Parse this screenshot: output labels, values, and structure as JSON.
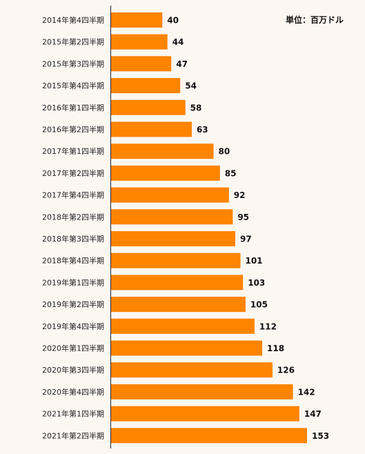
{
  "chart_data": {
    "type": "bar",
    "orientation": "horizontal",
    "unit_label": "単位：百万ドル",
    "bar_color": "#ff8400",
    "background": "#fdf7f2",
    "xlim": [
      0,
      153
    ],
    "grid": false,
    "categories": [
      "2014年第4四半期",
      "2015年第2四半期",
      "2015年第3四半期",
      "2015年第4四半期",
      "2016年第1四半期",
      "2016年第2四半期",
      "2017年第1四半期",
      "2017年第2四半期",
      "2017年第4四半期",
      "2018年第2四半期",
      "2018年第3四半期",
      "2018年第4四半期",
      "2019年第1四半期",
      "2019年第2四半期",
      "2019年第4四半期",
      "2020年第1四半期",
      "2020年第3四半期",
      "2020年第4四半期",
      "2021年第1四半期",
      "2021年第2四半期"
    ],
    "values": [
      40,
      44,
      47,
      54,
      58,
      63,
      80,
      85,
      92,
      95,
      97,
      101,
      103,
      105,
      112,
      118,
      126,
      142,
      147,
      153
    ]
  }
}
